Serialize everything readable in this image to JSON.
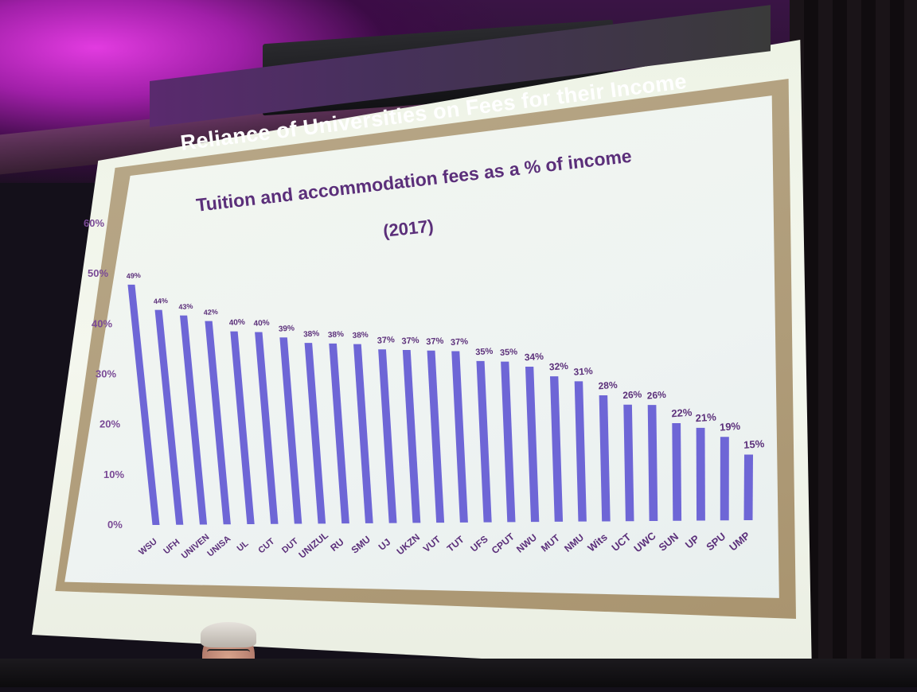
{
  "slide": {
    "title": "Reliance of Universities on Fees for their Income",
    "subtitle_line1": "Tuition and accommodation  fees as a % of income",
    "subtitle_line2": "(2017)"
  },
  "chart_data": {
    "type": "bar",
    "title": "Tuition and accommodation  fees as a % of income (2017)",
    "xlabel": "",
    "ylabel": "",
    "ylim": [
      0,
      60
    ],
    "yticks": [
      "0%",
      "10%",
      "20%",
      "30%",
      "40%",
      "50%",
      "60%"
    ],
    "categories": [
      "WSU",
      "UFH",
      "UNIVEN",
      "UNISA",
      "UL",
      "CUT",
      "DUT",
      "UNIZUL",
      "RU",
      "SMU",
      "UJ",
      "UKZN",
      "VUT",
      "TUT",
      "UFS",
      "CPUT",
      "NWU",
      "MUT",
      "NMU",
      "Wits",
      "UCT",
      "UWC",
      "SUN",
      "UP",
      "SPU",
      "UMP"
    ],
    "values": [
      49,
      44,
      43,
      42,
      40,
      40,
      39,
      38,
      38,
      38,
      37,
      37,
      37,
      37,
      35,
      35,
      34,
      32,
      31,
      28,
      26,
      26,
      22,
      21,
      19,
      15
    ],
    "value_labels": [
      "49%",
      "44%",
      "43%",
      "42%",
      "40%",
      "40%",
      "39%",
      "38%",
      "38%",
      "38%",
      "37%",
      "37%",
      "37%",
      "37%",
      "35%",
      "35%",
      "34%",
      "32%",
      "31%",
      "28%",
      "26%",
      "26%",
      "22%",
      "21%",
      "19%",
      "15%"
    ],
    "bar_color": "#6e66d6",
    "label_color": "#5b2f7a",
    "grid": false
  }
}
